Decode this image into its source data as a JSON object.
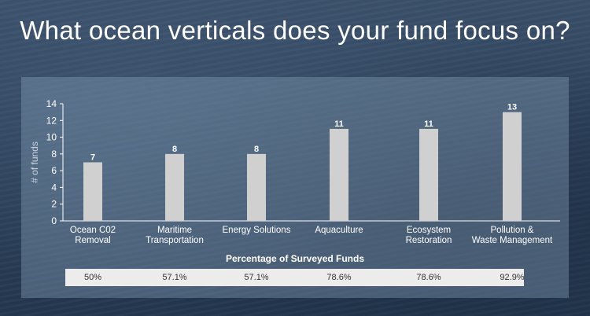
{
  "slide": {
    "title": "What ocean verticals does your fund focus on?",
    "percentage_heading": "Percentage of Surveyed Funds"
  },
  "colors": {
    "bar": "#d0d0d0",
    "panel": "#8ca5be",
    "text": "#ffffff"
  },
  "chart_data": {
    "type": "bar",
    "categories": [
      [
        "Ocean C02",
        "Removal"
      ],
      [
        "Maritime",
        "Transportation"
      ],
      [
        "Energy Solutions"
      ],
      [
        "Aquaculture"
      ],
      [
        "Ecosystem",
        "Restoration"
      ],
      [
        "Pollution &",
        "Waste Management"
      ]
    ],
    "values": [
      7,
      8,
      8,
      11,
      11,
      13
    ],
    "data_labels": [
      "7",
      "8",
      "8",
      "11",
      "11",
      "13"
    ],
    "percentages": [
      "50%",
      "57.1%",
      "57.1%",
      "78.6%",
      "78.6%",
      "92.9%"
    ],
    "ylabel": "# of funds",
    "xlabel": "",
    "ylim": [
      0,
      14
    ],
    "yticks": [
      0,
      2,
      4,
      6,
      8,
      10,
      12,
      14
    ],
    "grid": false,
    "legend": false
  }
}
